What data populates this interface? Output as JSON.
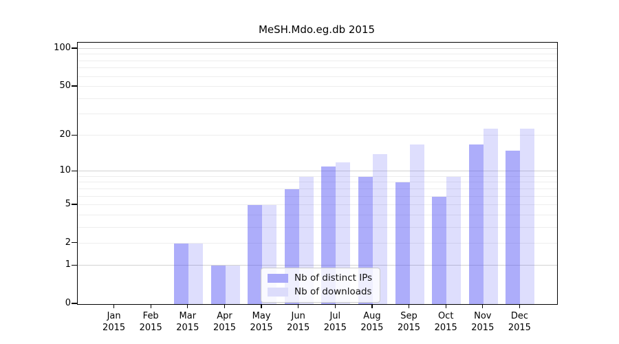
{
  "title": "MeSH.Mdo.eg.db 2015",
  "chart_data": {
    "type": "bar",
    "title": "MeSH.Mdo.eg.db 2015",
    "categories": [
      "Jan 2015",
      "Feb 2015",
      "Mar 2015",
      "Apr 2015",
      "May 2015",
      "Jun 2015",
      "Jul 2015",
      "Aug 2015",
      "Sep 2015",
      "Oct 2015",
      "Nov 2015",
      "Dec 2015"
    ],
    "series": [
      {
        "name": "Nb of distinct IPs",
        "fill": "rgba(80,80,245,0.47)",
        "legend_color": "#a9a9f9",
        "values": [
          0,
          0,
          2,
          1,
          5,
          7,
          11,
          9,
          8,
          6,
          17,
          15
        ]
      },
      {
        "name": "Nb of downloads",
        "fill": "rgba(80,80,245,0.19)",
        "legend_color": "#dcdcfb",
        "values": [
          0,
          0,
          2,
          1,
          5,
          9,
          12,
          14,
          17,
          9,
          23,
          23
        ]
      }
    ],
    "xlabel": "",
    "ylabel": "",
    "yscale": "log1p",
    "ylim": [
      0,
      112
    ],
    "yticks": [
      0,
      1,
      2,
      5,
      10,
      20,
      50,
      100
    ],
    "major_gridlines": [
      1,
      10,
      100
    ],
    "minor_gridlines": [
      2,
      3,
      4,
      5,
      6,
      7,
      8,
      9,
      20,
      30,
      40,
      50,
      60,
      70,
      80,
      90
    ],
    "grid": true,
    "legend_position": "lower center",
    "bar_color_dark_hex": "#ababfa",
    "bar_color_light_hex": "#dcdcfa"
  }
}
